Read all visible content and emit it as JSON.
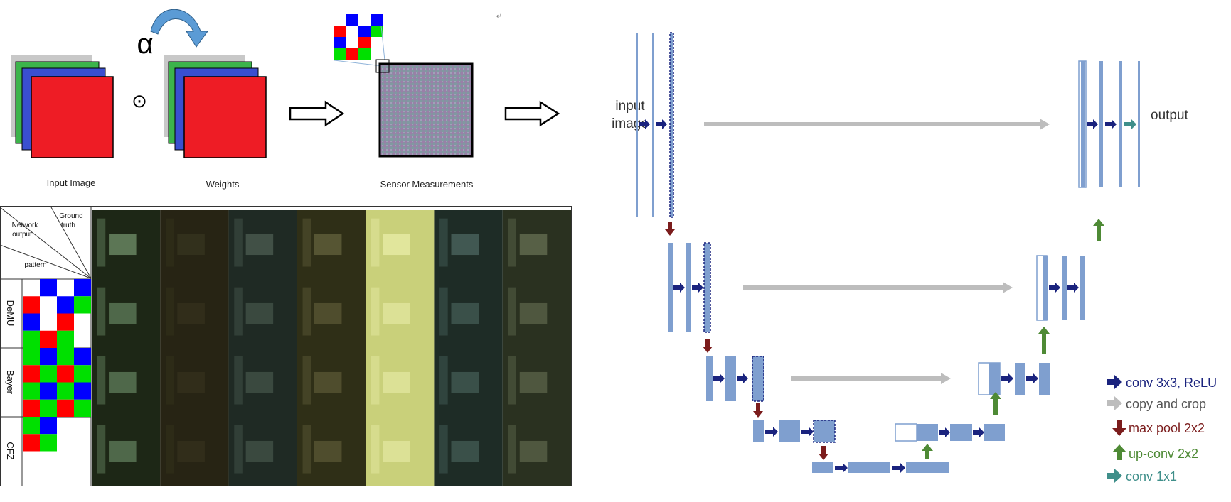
{
  "pipeline": {
    "input_caption": "Input Image",
    "alpha_symbol": "α",
    "product_symbol": "⊙",
    "weights_caption": "Weights",
    "sensor_caption": "Sensor Measurements",
    "corner_glyph": "↵"
  },
  "grid": {
    "header_ground_truth": [
      "Ground",
      "truth"
    ],
    "header_network_output": [
      "Network",
      "output"
    ],
    "header_pattern": "pattern",
    "rows": [
      {
        "label": "DeMU",
        "pattern": [
          [
            "w",
            "b",
            "w",
            "b"
          ],
          [
            "r",
            "w",
            "b",
            "g"
          ],
          [
            "b",
            "w",
            "r",
            "w"
          ],
          [
            "g",
            "r",
            "g",
            "w"
          ]
        ]
      },
      {
        "label": "Bayer",
        "pattern": [
          [
            "g",
            "b",
            "g",
            "b"
          ],
          [
            "r",
            "g",
            "r",
            "g"
          ],
          [
            "g",
            "b",
            "g",
            "b"
          ],
          [
            "r",
            "g",
            "r",
            "g"
          ]
        ]
      },
      {
        "label": "CFZ",
        "pattern": [
          [
            "g",
            "b",
            "w",
            "w"
          ],
          [
            "r",
            "g",
            "w",
            "w"
          ],
          [
            "w",
            "w",
            "w",
            "w"
          ],
          [
            "w",
            "w",
            "w",
            "w"
          ]
        ]
      }
    ],
    "scenes": [
      {
        "bg": "#1d2716",
        "accent": "#8fb88a"
      },
      {
        "bg": "#272414",
        "accent": "#3d3a22"
      },
      {
        "bg": "#1f2a24",
        "accent": "#5c6f62"
      },
      {
        "bg": "#2f2f17",
        "accent": "#77744a"
      },
      {
        "bg": "#c9d07a",
        "accent": "#f4f7b8"
      },
      {
        "bg": "#1e2c26",
        "accent": "#5e7d76"
      },
      {
        "bg": "#2a3120",
        "accent": "#7c8766"
      }
    ]
  },
  "unet": {
    "input_label": [
      "input",
      "image"
    ],
    "output_label": "output",
    "colors": {
      "feature": "#7f9fcf",
      "conv": "#1a237e",
      "copy": "#bdbdbd",
      "pool": "#7b1c1c",
      "up": "#4e8a35",
      "conv1x1": "#3f8f8a"
    },
    "legend": [
      {
        "key": "conv",
        "label": "conv 3x3, ReLU",
        "color": "#1a237e",
        "icon": "arrow-right-icon"
      },
      {
        "key": "copy",
        "label": "copy and crop",
        "color": "#555555",
        "icon": "arrow-right-icon"
      },
      {
        "key": "pool",
        "label": "max pool 2x2",
        "color": "#7b1c1c",
        "icon": "arrow-down-icon"
      },
      {
        "key": "up",
        "label": "up-conv 2x2",
        "color": "#4e8a35",
        "icon": "arrow-up-icon"
      },
      {
        "key": "conv1x1",
        "label": "conv 1x1",
        "color": "#3f8f8a",
        "icon": "arrow-right-icon"
      }
    ]
  }
}
